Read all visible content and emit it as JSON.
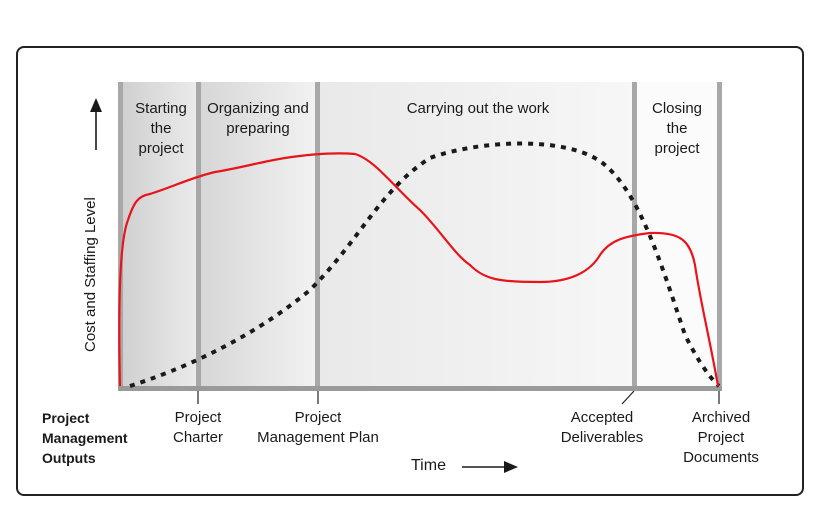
{
  "phases": [
    {
      "label": "Starting\nthe\nproject"
    },
    {
      "label": "Organizing and\npreparing"
    },
    {
      "label": "Carrying out the work"
    },
    {
      "label": "Closing\nthe\nproject"
    }
  ],
  "axis": {
    "y_label": "Cost and Staffing Level",
    "x_label": "Time"
  },
  "outputs": {
    "title": "Project\nManagement\nOutputs",
    "items": [
      {
        "label": "Project\nCharter"
      },
      {
        "label": "Project\nManagement Plan"
      },
      {
        "label": "Accepted\nDeliverables"
      },
      {
        "label": "Archived\nProject\nDocuments"
      }
    ]
  },
  "colors": {
    "effort_curve": "#e8141a",
    "dotted_curve": "#1a1a1a",
    "phase_divider": "#a8a8a8",
    "axis": "#9a9a9a"
  }
}
